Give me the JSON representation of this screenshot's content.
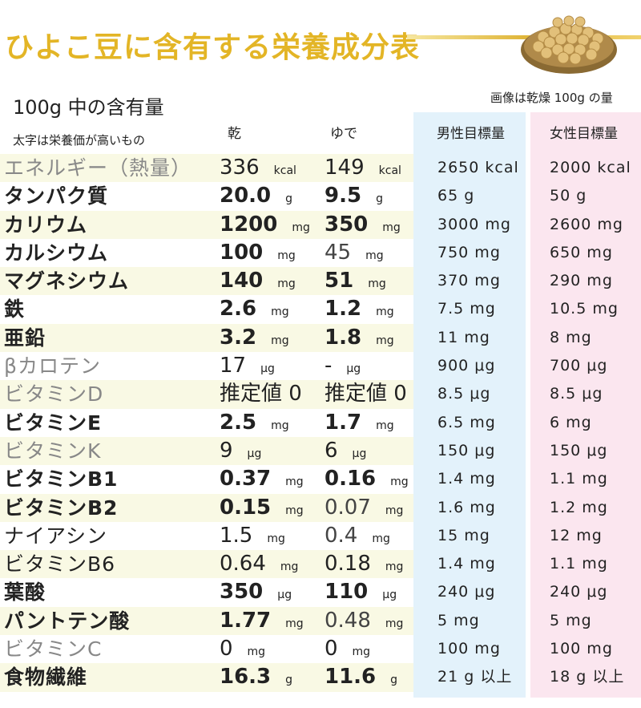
{
  "title": "ひよこ豆に含有する栄養成分表",
  "subtitle": "100g 中の含有量",
  "image_note": "画像は乾燥 100g の量",
  "bold_note": "太字は栄養価が高いもの",
  "headers": {
    "dry": "乾",
    "boiled": "ゆで",
    "male": "男性目標量",
    "female": "女性目標量"
  },
  "rows": [
    {
      "name": "エネルギー（熱量）",
      "dry": "336",
      "dry_unit": "kcal",
      "boil": "149",
      "boil_unit": "kcal",
      "male": "2650 kcal",
      "female": "2000 kcal",
      "style": "light"
    },
    {
      "name": "タンパク質",
      "dry": "20.0",
      "dry_unit": "g",
      "boil": "9.5",
      "boil_unit": "g",
      "male": "65 g",
      "female": "50 g",
      "style": "bold"
    },
    {
      "name": "カリウム",
      "dry": "1200",
      "dry_unit": "mg",
      "boil": "350",
      "boil_unit": "mg",
      "male": "3000 mg",
      "female": "2600 mg",
      "style": "bold"
    },
    {
      "name": "カルシウム",
      "dry": "100",
      "dry_unit": "mg",
      "boil": "45",
      "boil_unit": "mg",
      "male": "750 mg",
      "female": "650 mg",
      "style": "bold",
      "boil_light": true
    },
    {
      "name": "マグネシウム",
      "dry": "140",
      "dry_unit": "mg",
      "boil": "51",
      "boil_unit": "mg",
      "male": "370 mg",
      "female": "290 mg",
      "style": "bold"
    },
    {
      "name": "鉄",
      "dry": "2.6",
      "dry_unit": "mg",
      "boil": "1.2",
      "boil_unit": "mg",
      "male": "7.5 mg",
      "female": "10.5 mg",
      "style": "bold"
    },
    {
      "name": "亜鉛",
      "dry": "3.2",
      "dry_unit": "mg",
      "boil": "1.8",
      "boil_unit": "mg",
      "male": "11 mg",
      "female": "8 mg",
      "style": "bold"
    },
    {
      "name": "βカロテン",
      "dry": "17",
      "dry_unit": "μg",
      "boil": "-",
      "boil_unit": "μg",
      "male": "900 μg",
      "female": "700 μg",
      "style": "light"
    },
    {
      "name": "ビタミンD",
      "dry": "推定値 0",
      "dry_unit": "",
      "boil": "推定値 0",
      "boil_unit": "",
      "male": "8.5 μg",
      "female": "8.5 μg",
      "style": "light"
    },
    {
      "name": "ビタミンE",
      "dry": "2.5",
      "dry_unit": "mg",
      "boil": "1.7",
      "boil_unit": "mg",
      "male": "6.5 mg",
      "female": "6 mg",
      "style": "bold"
    },
    {
      "name": "ビタミンK",
      "dry": "9",
      "dry_unit": "μg",
      "boil": "6",
      "boil_unit": "μg",
      "male": "150 μg",
      "female": "150 μg",
      "style": "light"
    },
    {
      "name": "ビタミンB1",
      "dry": "0.37",
      "dry_unit": "mg",
      "boil": "0.16",
      "boil_unit": "mg",
      "male": "1.4 mg",
      "female": "1.1 mg",
      "style": "bold"
    },
    {
      "name": "ビタミンB2",
      "dry": "0.15",
      "dry_unit": "mg",
      "boil": "0.07",
      "boil_unit": "mg",
      "male": "1.6 mg",
      "female": "1.2 mg",
      "style": "bold",
      "boil_light": true
    },
    {
      "name": "ナイアシン",
      "dry": "1.5",
      "dry_unit": "mg",
      "boil": "0.4",
      "boil_unit": "mg",
      "male": "15 mg",
      "female": "12 mg",
      "style": "plain",
      "boil_light": true
    },
    {
      "name": "ビタミンB6",
      "dry": "0.64",
      "dry_unit": "mg",
      "boil": "0.18",
      "boil_unit": "mg",
      "male": "1.4 mg",
      "female": "1.1 mg",
      "style": "plain"
    },
    {
      "name": "葉酸",
      "dry": "350",
      "dry_unit": "μg",
      "boil": "110",
      "boil_unit": "μg",
      "male": "240 μg",
      "female": "240 μg",
      "style": "bold"
    },
    {
      "name": "パントテン酸",
      "dry": "1.77",
      "dry_unit": "mg",
      "boil": "0.48",
      "boil_unit": "mg",
      "male": "5 mg",
      "female": "5 mg",
      "style": "bold",
      "boil_light": true
    },
    {
      "name": "ビタミンC",
      "dry": "0",
      "dry_unit": "mg",
      "boil": "0",
      "boil_unit": "mg",
      "male": "100 mg",
      "female": "100 mg",
      "style": "light"
    },
    {
      "name": "食物繊維",
      "dry": "16.3",
      "dry_unit": "g",
      "boil": "11.6",
      "boil_unit": "g",
      "male": "21 g 以上",
      "female": "18 g 以上",
      "style": "bold"
    }
  ]
}
